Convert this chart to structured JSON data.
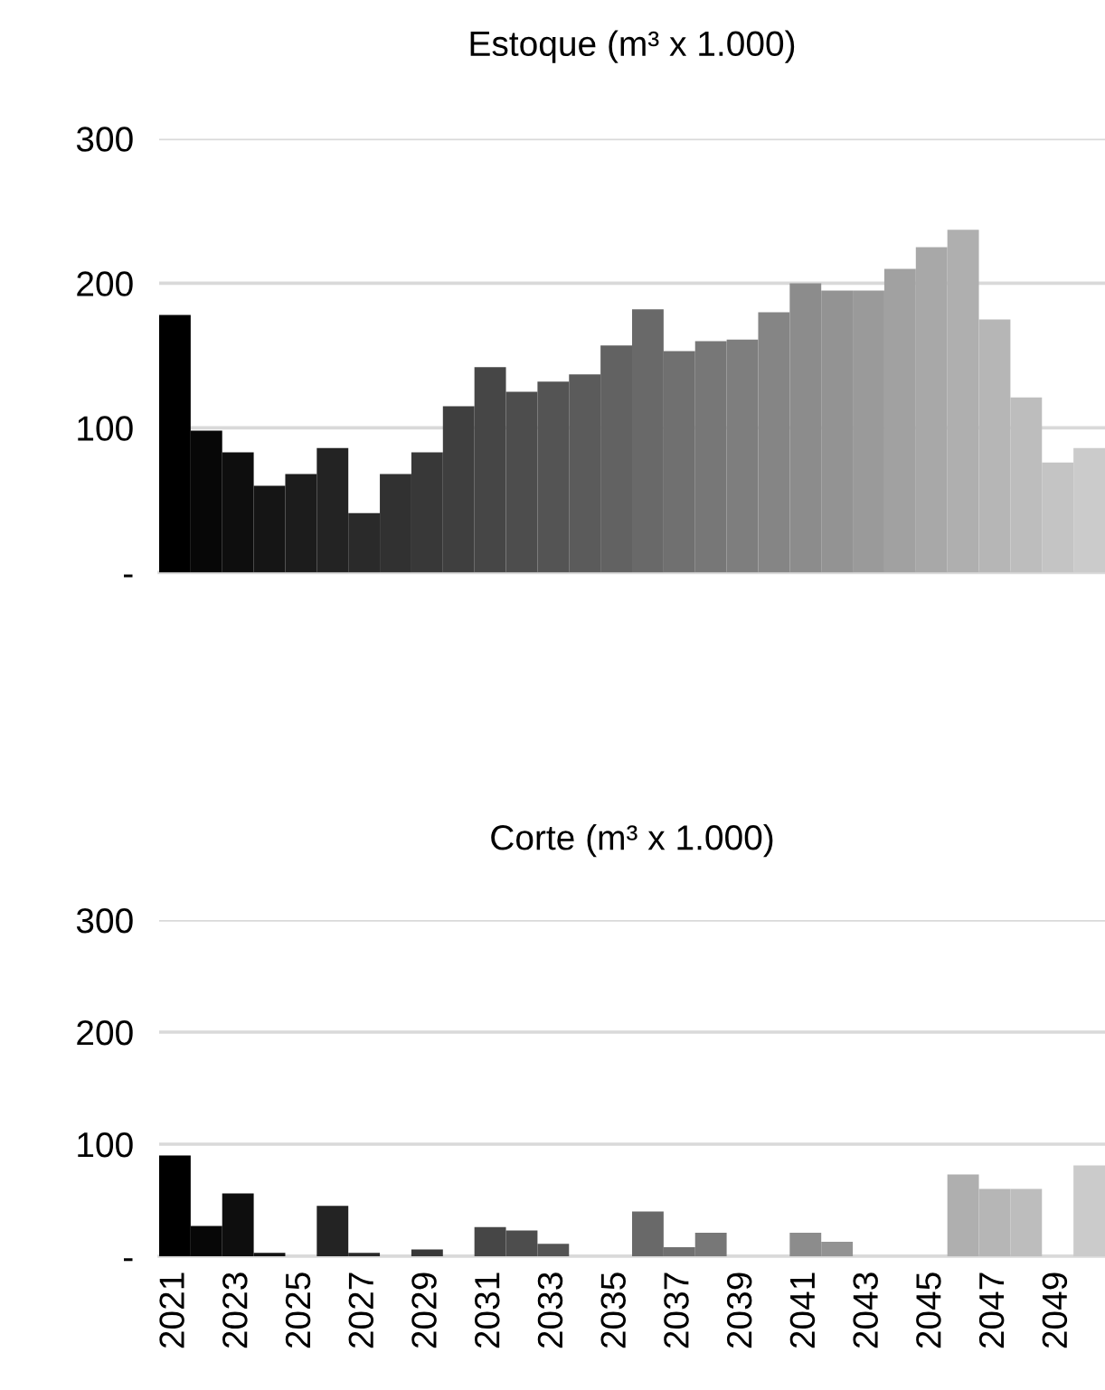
{
  "chart_data": [
    {
      "type": "bar",
      "title": "Estoque (m³ x 1.000)",
      "categories": [
        "2021",
        null,
        "2023",
        null,
        "2025",
        null,
        "2027",
        null,
        "2029",
        null,
        "2031",
        null,
        "2033",
        null,
        "2035",
        null,
        "2037",
        null,
        "2039",
        null,
        "2041",
        null,
        "2043",
        null,
        "2045",
        null,
        "2047",
        null,
        "2049",
        null
      ],
      "values": [
        178,
        98,
        83,
        60,
        68,
        86,
        41,
        68,
        83,
        115,
        142,
        125,
        132,
        137,
        157,
        182,
        153,
        160,
        161,
        180,
        200,
        195,
        195,
        210,
        225,
        237,
        175,
        121,
        76,
        86
      ],
      "colors": [
        "#000000",
        "#070707",
        "#0e0e0e",
        "#151515",
        "#1c1c1c",
        "#232323",
        "#2a2a2a",
        "#313131",
        "#383838",
        "#3f3f3f",
        "#464646",
        "#4d4d4d",
        "#545454",
        "#5b5b5b",
        "#626262",
        "#696969",
        "#707070",
        "#777777",
        "#7e7e7e",
        "#858585",
        "#8c8c8c",
        "#939393",
        "#9a9a9a",
        "#a1a1a1",
        "#a8a8a8",
        "#afafaf",
        "#b6b6b6",
        "#bdbdbd",
        "#c4c4c4",
        "#cbcbcb"
      ],
      "ylim": [
        0,
        300
      ],
      "yticks": [
        {
          "value": 0,
          "label": "-"
        },
        100,
        200,
        300
      ],
      "grid": "y",
      "tick_labels": "y"
    },
    {
      "type": "bar",
      "title": "Corte (m³ x 1.000)",
      "categories": [
        "2021",
        null,
        "2023",
        null,
        "2025",
        null,
        "2027",
        null,
        "2029",
        null,
        "2031",
        null,
        "2033",
        null,
        "2035",
        null,
        "2037",
        null,
        "2039",
        null,
        "2041",
        null,
        "2043",
        null,
        "2045",
        null,
        "2047",
        null,
        "2049",
        null
      ],
      "values": [
        90,
        27,
        56,
        3,
        0,
        45,
        3,
        0,
        6,
        0,
        26,
        23,
        11,
        0,
        0,
        40,
        8,
        21,
        0,
        0,
        21,
        13,
        0,
        0,
        0,
        73,
        60,
        60,
        0,
        81
      ],
      "colors": [
        "#000000",
        "#070707",
        "#0e0e0e",
        "#151515",
        "#1c1c1c",
        "#232323",
        "#2a2a2a",
        "#313131",
        "#383838",
        "#3f3f3f",
        "#464646",
        "#4d4d4d",
        "#545454",
        "#5b5b5b",
        "#626262",
        "#696969",
        "#707070",
        "#777777",
        "#7e7e7e",
        "#858585",
        "#8c8c8c",
        "#939393",
        "#9a9a9a",
        "#a1a1a1",
        "#a8a8a8",
        "#afafaf",
        "#b6b6b6",
        "#bdbdbd",
        "#c4c4c4",
        "#cbcbcb"
      ],
      "ylim": [
        0,
        300
      ],
      "yticks": [
        {
          "value": 0,
          "label": "-"
        },
        100,
        200,
        300
      ],
      "grid": "y"
    }
  ]
}
